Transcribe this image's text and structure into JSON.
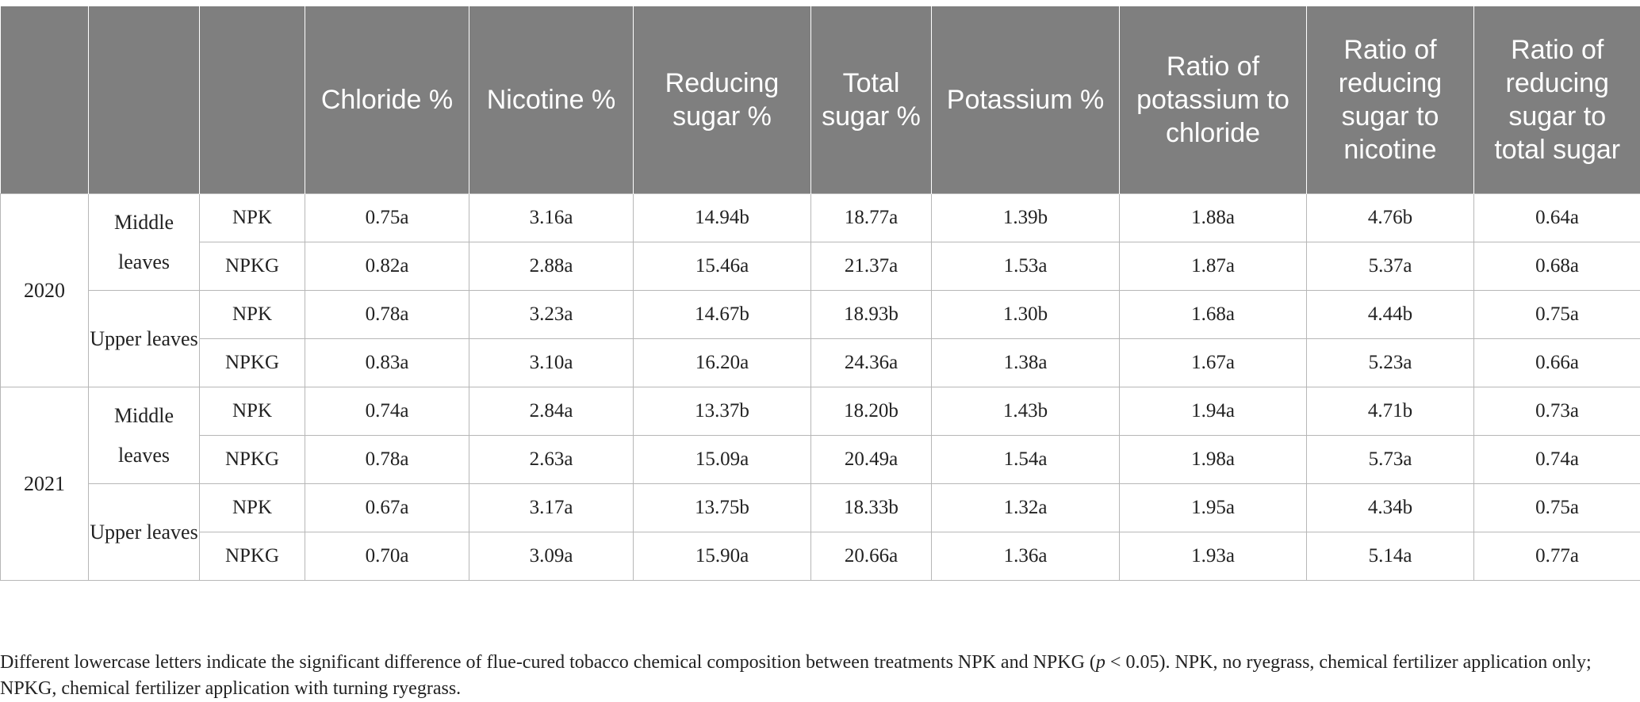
{
  "header": {
    "col_year": "",
    "col_leaf": "",
    "col_treatment": "",
    "chloride": "Chloride %",
    "nicotine": "Nicotine %",
    "reducing_sugar": "Reducing sugar %",
    "total_sugar": "Total sugar %",
    "potassium": "Potassium %",
    "k_cl": "Ratio of potassium to chloride",
    "rs_nic": "Ratio of reducing sugar to nicotine",
    "rs_ts": "Ratio of reducing sugar to total sugar"
  },
  "years": [
    {
      "year": "2020",
      "groups": [
        {
          "leaf": "Middle leaves",
          "rows": [
            {
              "treatment": "NPK",
              "values": [
                "0.75a",
                "3.16a",
                "14.94b",
                "18.77a",
                "1.39b",
                "1.88a",
                "4.76b",
                "0.64a"
              ]
            },
            {
              "treatment": "NPKG",
              "values": [
                "0.82a",
                "2.88a",
                "15.46a",
                "21.37a",
                "1.53a",
                "1.87a",
                "5.37a",
                "0.68a"
              ]
            }
          ]
        },
        {
          "leaf": "Upper leaves",
          "rows": [
            {
              "treatment": "NPK",
              "values": [
                "0.78a",
                "3.23a",
                "14.67b",
                "18.93b",
                "1.30b",
                "1.68a",
                "4.44b",
                "0.75a"
              ]
            },
            {
              "treatment": "NPKG",
              "values": [
                "0.83a",
                "3.10a",
                "16.20a",
                "24.36a",
                "1.38a",
                "1.67a",
                "5.23a",
                "0.66a"
              ]
            }
          ]
        }
      ]
    },
    {
      "year": "2021",
      "groups": [
        {
          "leaf": "Middle leaves",
          "rows": [
            {
              "treatment": "NPK",
              "values": [
                "0.74a",
                "2.84a",
                "13.37b",
                "18.20b",
                "1.43b",
                "1.94a",
                "4.71b",
                "0.73a"
              ]
            },
            {
              "treatment": "NPKG",
              "values": [
                "0.78a",
                "2.63a",
                "15.09a",
                "20.49a",
                "1.54a",
                "1.98a",
                "5.73a",
                "0.74a"
              ]
            }
          ]
        },
        {
          "leaf": "Upper leaves",
          "rows": [
            {
              "treatment": "NPK",
              "values": [
                "0.67a",
                "3.17a",
                "13.75b",
                "18.33b",
                "1.32a",
                "1.95a",
                "4.34b",
                "0.75a"
              ]
            },
            {
              "treatment": "NPKG",
              "values": [
                "0.70a",
                "3.09a",
                "15.90a",
                "20.66a",
                "1.36a",
                "1.93a",
                "5.14a",
                "0.77a"
              ]
            }
          ]
        }
      ]
    }
  ],
  "footnote": {
    "part1": "Different lowercase letters indicate the significant difference of flue-cured tobacco chemical composition between treatments NPK and NPKG (",
    "p_symbol": "p",
    "part2": " < 0.05). NPK, no ryegrass, chemical fertilizer application only; NPKG, chemical fertilizer application with turning ryegrass."
  }
}
